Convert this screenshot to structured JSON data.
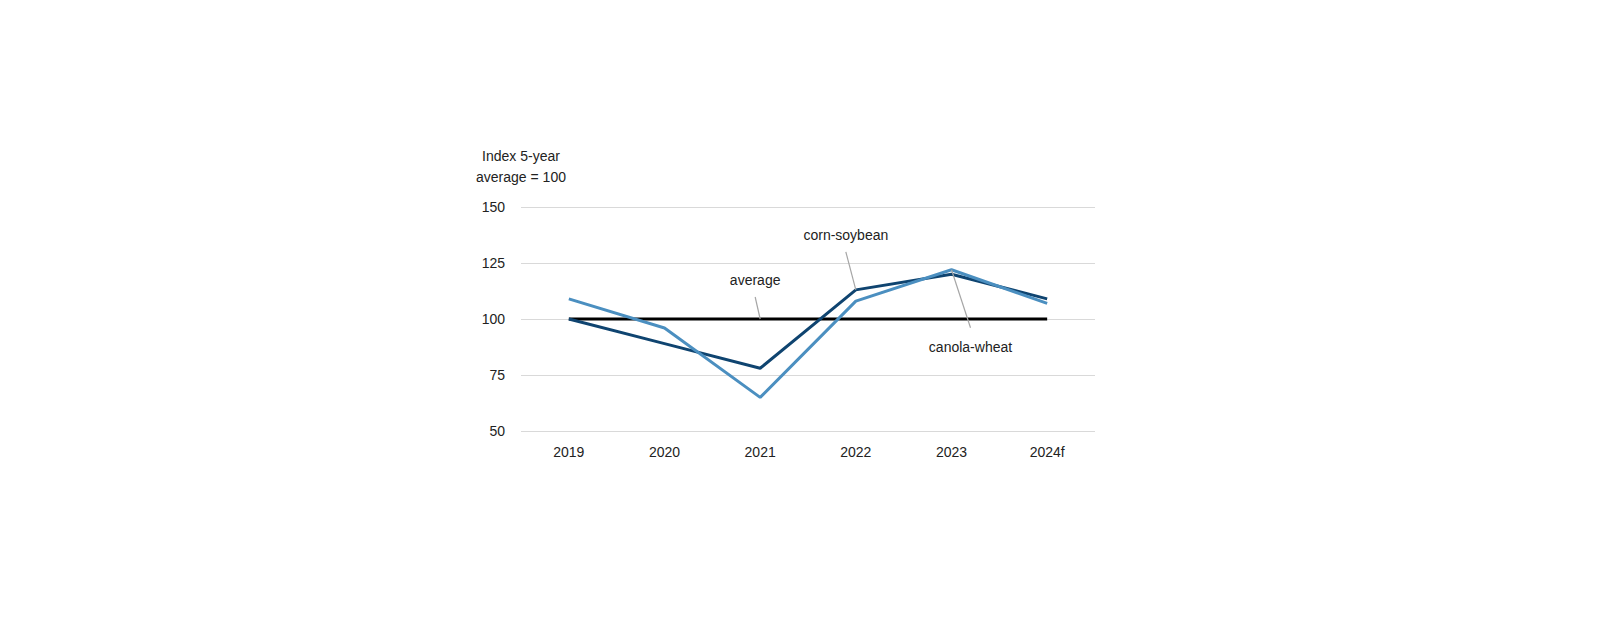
{
  "chart_data": {
    "type": "line",
    "y_label": "Index 5-year\naverage = 100",
    "categories": [
      "2019",
      "2020",
      "2021",
      "2022",
      "2023",
      "2024f"
    ],
    "series": [
      {
        "name": "average",
        "color": "#000000",
        "values": [
          100,
          100,
          100,
          100,
          100,
          100
        ]
      },
      {
        "name": "corn-soybean",
        "color": "#0f4470",
        "values": [
          100,
          89,
          78,
          113,
          120,
          109
        ]
      },
      {
        "name": "canola-wheat",
        "color": "#4b8fc0",
        "values": [
          109,
          96,
          65,
          108,
          122,
          107
        ]
      }
    ],
    "ylim": [
      50,
      150
    ],
    "yticks": [
      50,
      75,
      100,
      125,
      150
    ],
    "grid": true
  }
}
